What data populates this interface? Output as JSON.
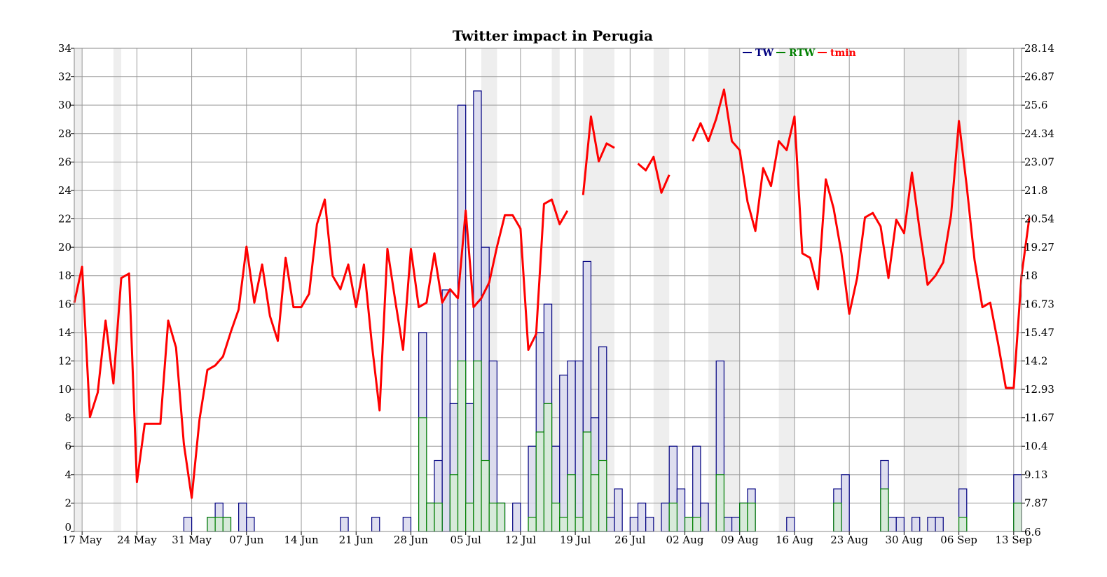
{
  "chart_data": {
    "type": "bar",
    "title": "Twitter impact in Perugia",
    "xlabel": "",
    "ylabel": "",
    "grid": true,
    "legend_placement": "top-right",
    "x_start": "2012-05-16",
    "x_end": "2012-09-14",
    "x_tick_labels": [
      "17 May",
      "24 May",
      "31 May",
      "07 Jun",
      "14 Jun",
      "21 Jun",
      "28 Jun",
      "05 Jul",
      "12 Jul",
      "19 Jul",
      "26 Jul",
      "02 Aug",
      "09 Aug",
      "16 Aug",
      "23 Aug",
      "30 Aug",
      "06 Sep",
      "13 Sep"
    ],
    "y_left": {
      "range": [
        0,
        34
      ],
      "ticks": [
        "0",
        "2",
        "4",
        "6",
        "8",
        "10",
        "12",
        "14",
        "16",
        "18",
        "20",
        "22",
        "24",
        "26",
        "28",
        "30",
        "32",
        "34"
      ]
    },
    "y_right": {
      "range": [
        6.6,
        28.14
      ],
      "ticks": [
        "6.6",
        "7.87",
        "9.13",
        "10.4",
        "11.67",
        "12.93",
        "14.2",
        "15.47",
        "16.73",
        "18",
        "19.27",
        "20.54",
        "21.8",
        "23.07",
        "24.34",
        "25.6",
        "26.87",
        "28.14"
      ]
    },
    "shaded_bands": [
      [
        "2012-05-16",
        "2012-05-17"
      ],
      [
        "2012-05-21",
        "2012-05-22"
      ],
      [
        "2012-07-07",
        "2012-07-09"
      ],
      [
        "2012-07-16",
        "2012-07-17"
      ],
      [
        "2012-07-20",
        "2012-07-24"
      ],
      [
        "2012-07-29",
        "2012-07-31"
      ],
      [
        "2012-08-05",
        "2012-08-09"
      ],
      [
        "2012-08-14",
        "2012-08-16"
      ],
      [
        "2012-08-30",
        "2012-09-07"
      ]
    ],
    "series": [
      {
        "name": "TW",
        "axis": "left",
        "color": "#000080",
        "fill": "#d8d8ec",
        "points": [
          [
            "2012-05-30",
            1
          ],
          [
            "2012-06-02",
            1
          ],
          [
            "2012-06-03",
            2
          ],
          [
            "2012-06-04",
            1
          ],
          [
            "2012-06-06",
            2
          ],
          [
            "2012-06-07",
            1
          ],
          [
            "2012-06-19",
            1
          ],
          [
            "2012-06-23",
            1
          ],
          [
            "2012-06-27",
            1
          ],
          [
            "2012-06-29",
            14
          ],
          [
            "2012-06-30",
            2
          ],
          [
            "2012-07-01",
            5
          ],
          [
            "2012-07-02",
            17
          ],
          [
            "2012-07-03",
            9
          ],
          [
            "2012-07-04",
            30
          ],
          [
            "2012-07-05",
            9
          ],
          [
            "2012-07-06",
            31
          ],
          [
            "2012-07-07",
            20
          ],
          [
            "2012-07-08",
            12
          ],
          [
            "2012-07-09",
            2
          ],
          [
            "2012-07-11",
            2
          ],
          [
            "2012-07-13",
            6
          ],
          [
            "2012-07-14",
            14
          ],
          [
            "2012-07-15",
            16
          ],
          [
            "2012-07-16",
            6
          ],
          [
            "2012-07-17",
            11
          ],
          [
            "2012-07-18",
            12
          ],
          [
            "2012-07-19",
            12
          ],
          [
            "2012-07-20",
            19
          ],
          [
            "2012-07-21",
            8
          ],
          [
            "2012-07-22",
            13
          ],
          [
            "2012-07-23",
            1
          ],
          [
            "2012-07-24",
            3
          ],
          [
            "2012-07-26",
            1
          ],
          [
            "2012-07-27",
            2
          ],
          [
            "2012-07-28",
            1
          ],
          [
            "2012-07-30",
            2
          ],
          [
            "2012-07-31",
            6
          ],
          [
            "2012-08-01",
            3
          ],
          [
            "2012-08-02",
            1
          ],
          [
            "2012-08-03",
            6
          ],
          [
            "2012-08-04",
            2
          ],
          [
            "2012-08-06",
            12
          ],
          [
            "2012-08-07",
            1
          ],
          [
            "2012-08-08",
            1
          ],
          [
            "2012-08-09",
            2
          ],
          [
            "2012-08-10",
            3
          ],
          [
            "2012-08-15",
            1
          ],
          [
            "2012-08-21",
            3
          ],
          [
            "2012-08-22",
            4
          ],
          [
            "2012-08-27",
            5
          ],
          [
            "2012-08-28",
            1
          ],
          [
            "2012-08-29",
            1
          ],
          [
            "2012-08-31",
            1
          ],
          [
            "2012-09-02",
            1
          ],
          [
            "2012-09-03",
            1
          ],
          [
            "2012-09-06",
            3
          ],
          [
            "2012-09-13",
            4
          ]
        ]
      },
      {
        "name": "RTW",
        "axis": "left",
        "color": "#008000",
        "fill": "#d6ecd6",
        "points": [
          [
            "2012-06-02",
            1
          ],
          [
            "2012-06-03",
            1
          ],
          [
            "2012-06-04",
            1
          ],
          [
            "2012-06-29",
            8
          ],
          [
            "2012-06-30",
            2
          ],
          [
            "2012-07-01",
            2
          ],
          [
            "2012-07-03",
            4
          ],
          [
            "2012-07-04",
            12
          ],
          [
            "2012-07-05",
            2
          ],
          [
            "2012-07-06",
            12
          ],
          [
            "2012-07-07",
            5
          ],
          [
            "2012-07-08",
            2
          ],
          [
            "2012-07-09",
            2
          ],
          [
            "2012-07-13",
            1
          ],
          [
            "2012-07-14",
            7
          ],
          [
            "2012-07-15",
            9
          ],
          [
            "2012-07-16",
            2
          ],
          [
            "2012-07-17",
            1
          ],
          [
            "2012-07-18",
            4
          ],
          [
            "2012-07-19",
            1
          ],
          [
            "2012-07-20",
            7
          ],
          [
            "2012-07-21",
            4
          ],
          [
            "2012-07-22",
            5
          ],
          [
            "2012-07-31",
            2
          ],
          [
            "2012-08-02",
            1
          ],
          [
            "2012-08-03",
            1
          ],
          [
            "2012-08-06",
            4
          ],
          [
            "2012-08-09",
            2
          ],
          [
            "2012-08-10",
            2
          ],
          [
            "2012-08-21",
            2
          ],
          [
            "2012-08-27",
            3
          ],
          [
            "2012-09-06",
            1
          ],
          [
            "2012-09-13",
            2
          ]
        ]
      },
      {
        "name": "tmin",
        "axis": "right",
        "color": "#ff0000",
        "segments": [
          [
            [
              "2012-05-16",
              16.8
            ],
            [
              "2012-05-17",
              18.4
            ],
            [
              "2012-05-18",
              11.7
            ],
            [
              "2012-05-19",
              12.8
            ],
            [
              "2012-05-20",
              16.0
            ],
            [
              "2012-05-21",
              13.2
            ],
            [
              "2012-05-22",
              17.9
            ],
            [
              "2012-05-23",
              18.1
            ],
            [
              "2012-05-24",
              8.8
            ],
            [
              "2012-05-25",
              11.4
            ],
            [
              "2012-05-26",
              11.4
            ],
            [
              "2012-05-27",
              11.4
            ],
            [
              "2012-05-28",
              16.0
            ],
            [
              "2012-05-29",
              14.8
            ],
            [
              "2012-05-30",
              10.5
            ],
            [
              "2012-05-31",
              8.1
            ],
            [
              "2012-06-01",
              11.6
            ],
            [
              "2012-06-02",
              13.8
            ],
            [
              "2012-06-03",
              14.0
            ],
            [
              "2012-06-04",
              14.4
            ],
            [
              "2012-06-05",
              15.5
            ],
            [
              "2012-06-06",
              16.5
            ],
            [
              "2012-06-07",
              19.3
            ],
            [
              "2012-06-08",
              16.8
            ],
            [
              "2012-06-09",
              18.5
            ],
            [
              "2012-06-10",
              16.2
            ],
            [
              "2012-06-11",
              15.1
            ],
            [
              "2012-06-12",
              18.8
            ],
            [
              "2012-06-13",
              16.6
            ],
            [
              "2012-06-14",
              16.6
            ],
            [
              "2012-06-15",
              17.2
            ],
            [
              "2012-06-16",
              20.3
            ],
            [
              "2012-06-17",
              21.4
            ],
            [
              "2012-06-18",
              18.0
            ],
            [
              "2012-06-19",
              17.4
            ],
            [
              "2012-06-20",
              18.5
            ],
            [
              "2012-06-21",
              16.6
            ],
            [
              "2012-06-22",
              18.5
            ],
            [
              "2012-06-23",
              15.0
            ],
            [
              "2012-06-24",
              12.0
            ],
            [
              "2012-06-25",
              19.2
            ],
            [
              "2012-06-26",
              16.9
            ],
            [
              "2012-06-27",
              14.7
            ],
            [
              "2012-06-28",
              19.2
            ],
            [
              "2012-06-29",
              16.6
            ],
            [
              "2012-06-30",
              16.8
            ],
            [
              "2012-07-01",
              19.0
            ],
            [
              "2012-07-02",
              16.8
            ],
            [
              "2012-07-03",
              17.4
            ],
            [
              "2012-07-04",
              17.0
            ],
            [
              "2012-07-05",
              20.9
            ],
            [
              "2012-07-06",
              16.6
            ],
            [
              "2012-07-07",
              17.0
            ],
            [
              "2012-07-08",
              17.7
            ],
            [
              "2012-07-09",
              19.3
            ],
            [
              "2012-07-10",
              20.7
            ],
            [
              "2012-07-11",
              20.7
            ],
            [
              "2012-07-12",
              20.1
            ],
            [
              "2012-07-13",
              14.7
            ],
            [
              "2012-07-14",
              15.4
            ],
            [
              "2012-07-15",
              21.2
            ],
            [
              "2012-07-16",
              21.4
            ],
            [
              "2012-07-17",
              20.3
            ],
            [
              "2012-07-18",
              20.9
            ]
          ],
          [
            [
              "2012-07-20",
              21.6
            ],
            [
              "2012-07-21",
              25.1
            ],
            [
              "2012-07-22",
              23.1
            ],
            [
              "2012-07-23",
              23.9
            ],
            [
              "2012-07-24",
              23.7
            ]
          ],
          [
            [
              "2012-07-27",
              23.0
            ],
            [
              "2012-07-28",
              22.7
            ],
            [
              "2012-07-29",
              23.3
            ],
            [
              "2012-07-30",
              21.7
            ],
            [
              "2012-07-31",
              22.5
            ]
          ],
          [
            [
              "2012-08-03",
              24.0
            ],
            [
              "2012-08-04",
              24.8
            ],
            [
              "2012-08-05",
              24.0
            ],
            [
              "2012-08-06",
              25.0
            ],
            [
              "2012-08-07",
              26.3
            ],
            [
              "2012-08-08",
              24.0
            ],
            [
              "2012-08-09",
              23.6
            ],
            [
              "2012-08-10",
              21.3
            ],
            [
              "2012-08-11",
              20.0
            ],
            [
              "2012-08-12",
              22.8
            ],
            [
              "2012-08-13",
              22.0
            ],
            [
              "2012-08-14",
              24.0
            ],
            [
              "2012-08-15",
              23.6
            ],
            [
              "2012-08-16",
              25.1
            ],
            [
              "2012-08-17",
              19.0
            ],
            [
              "2012-08-18",
              18.8
            ],
            [
              "2012-08-19",
              17.4
            ],
            [
              "2012-08-20",
              22.3
            ],
            [
              "2012-08-21",
              21.0
            ],
            [
              "2012-08-22",
              19.0
            ],
            [
              "2012-08-23",
              16.3
            ],
            [
              "2012-08-24",
              17.9
            ],
            [
              "2012-08-25",
              20.6
            ],
            [
              "2012-08-26",
              20.8
            ],
            [
              "2012-08-27",
              20.2
            ],
            [
              "2012-08-28",
              17.9
            ],
            [
              "2012-08-29",
              20.5
            ],
            [
              "2012-08-30",
              19.9
            ],
            [
              "2012-08-31",
              22.6
            ],
            [
              "2012-09-01",
              20.0
            ],
            [
              "2012-09-02",
              17.6
            ],
            [
              "2012-09-03",
              18.0
            ],
            [
              "2012-09-04",
              18.6
            ],
            [
              "2012-09-05",
              20.7
            ],
            [
              "2012-09-06",
              24.9
            ],
            [
              "2012-09-07",
              22.0
            ],
            [
              "2012-09-08",
              18.7
            ],
            [
              "2012-09-09",
              16.6
            ],
            [
              "2012-09-10",
              16.8
            ],
            [
              "2012-09-11",
              15.0
            ],
            [
              "2012-09-12",
              13.0
            ],
            [
              "2012-09-13",
              13.0
            ],
            [
              "2012-09-14",
              18.0
            ],
            [
              "2012-09-15",
              20.6
            ]
          ]
        ]
      }
    ]
  }
}
